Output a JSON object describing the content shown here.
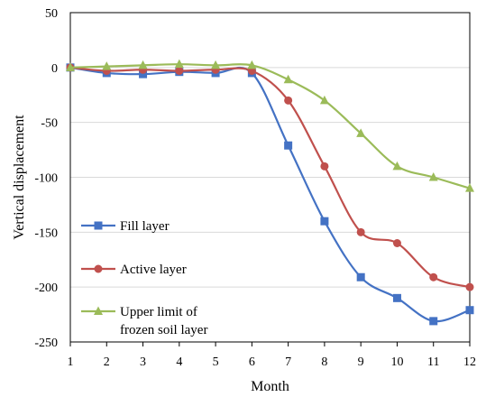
{
  "chart_data": {
    "type": "line",
    "xlabel": "Month",
    "ylabel": "Vertical displacement",
    "x": [
      1,
      2,
      3,
      4,
      5,
      6,
      7,
      8,
      9,
      10,
      11,
      12
    ],
    "xlim": [
      1,
      12
    ],
    "ylim": [
      -250,
      50
    ],
    "yticks": [
      50,
      0,
      -50,
      -100,
      -150,
      -200,
      -250
    ],
    "grid": "horizontal",
    "legend_position": "bottom-left",
    "smooth": true,
    "series": [
      {
        "name": "Fill layer",
        "color": "#4472C4",
        "marker": "square",
        "values": [
          0,
          -5,
          -6,
          -4,
          -5,
          -5,
          -71,
          -140,
          -191,
          -210,
          -231,
          -221
        ]
      },
      {
        "name": "Active layer",
        "color": "#C0504D",
        "marker": "circle",
        "values": [
          0,
          -3,
          -2,
          -3,
          -2,
          -3,
          -30,
          -90,
          -150,
          -160,
          -191,
          -200
        ]
      },
      {
        "name": "Upper limit of frozen soil layer",
        "legend_lines": [
          "Upper limit of",
          "frozen soil layer"
        ],
        "color": "#9BBB59",
        "marker": "triangle",
        "values": [
          0,
          1,
          2,
          3,
          2,
          2,
          -11,
          -30,
          -60,
          -90,
          -100,
          -110
        ]
      }
    ]
  }
}
